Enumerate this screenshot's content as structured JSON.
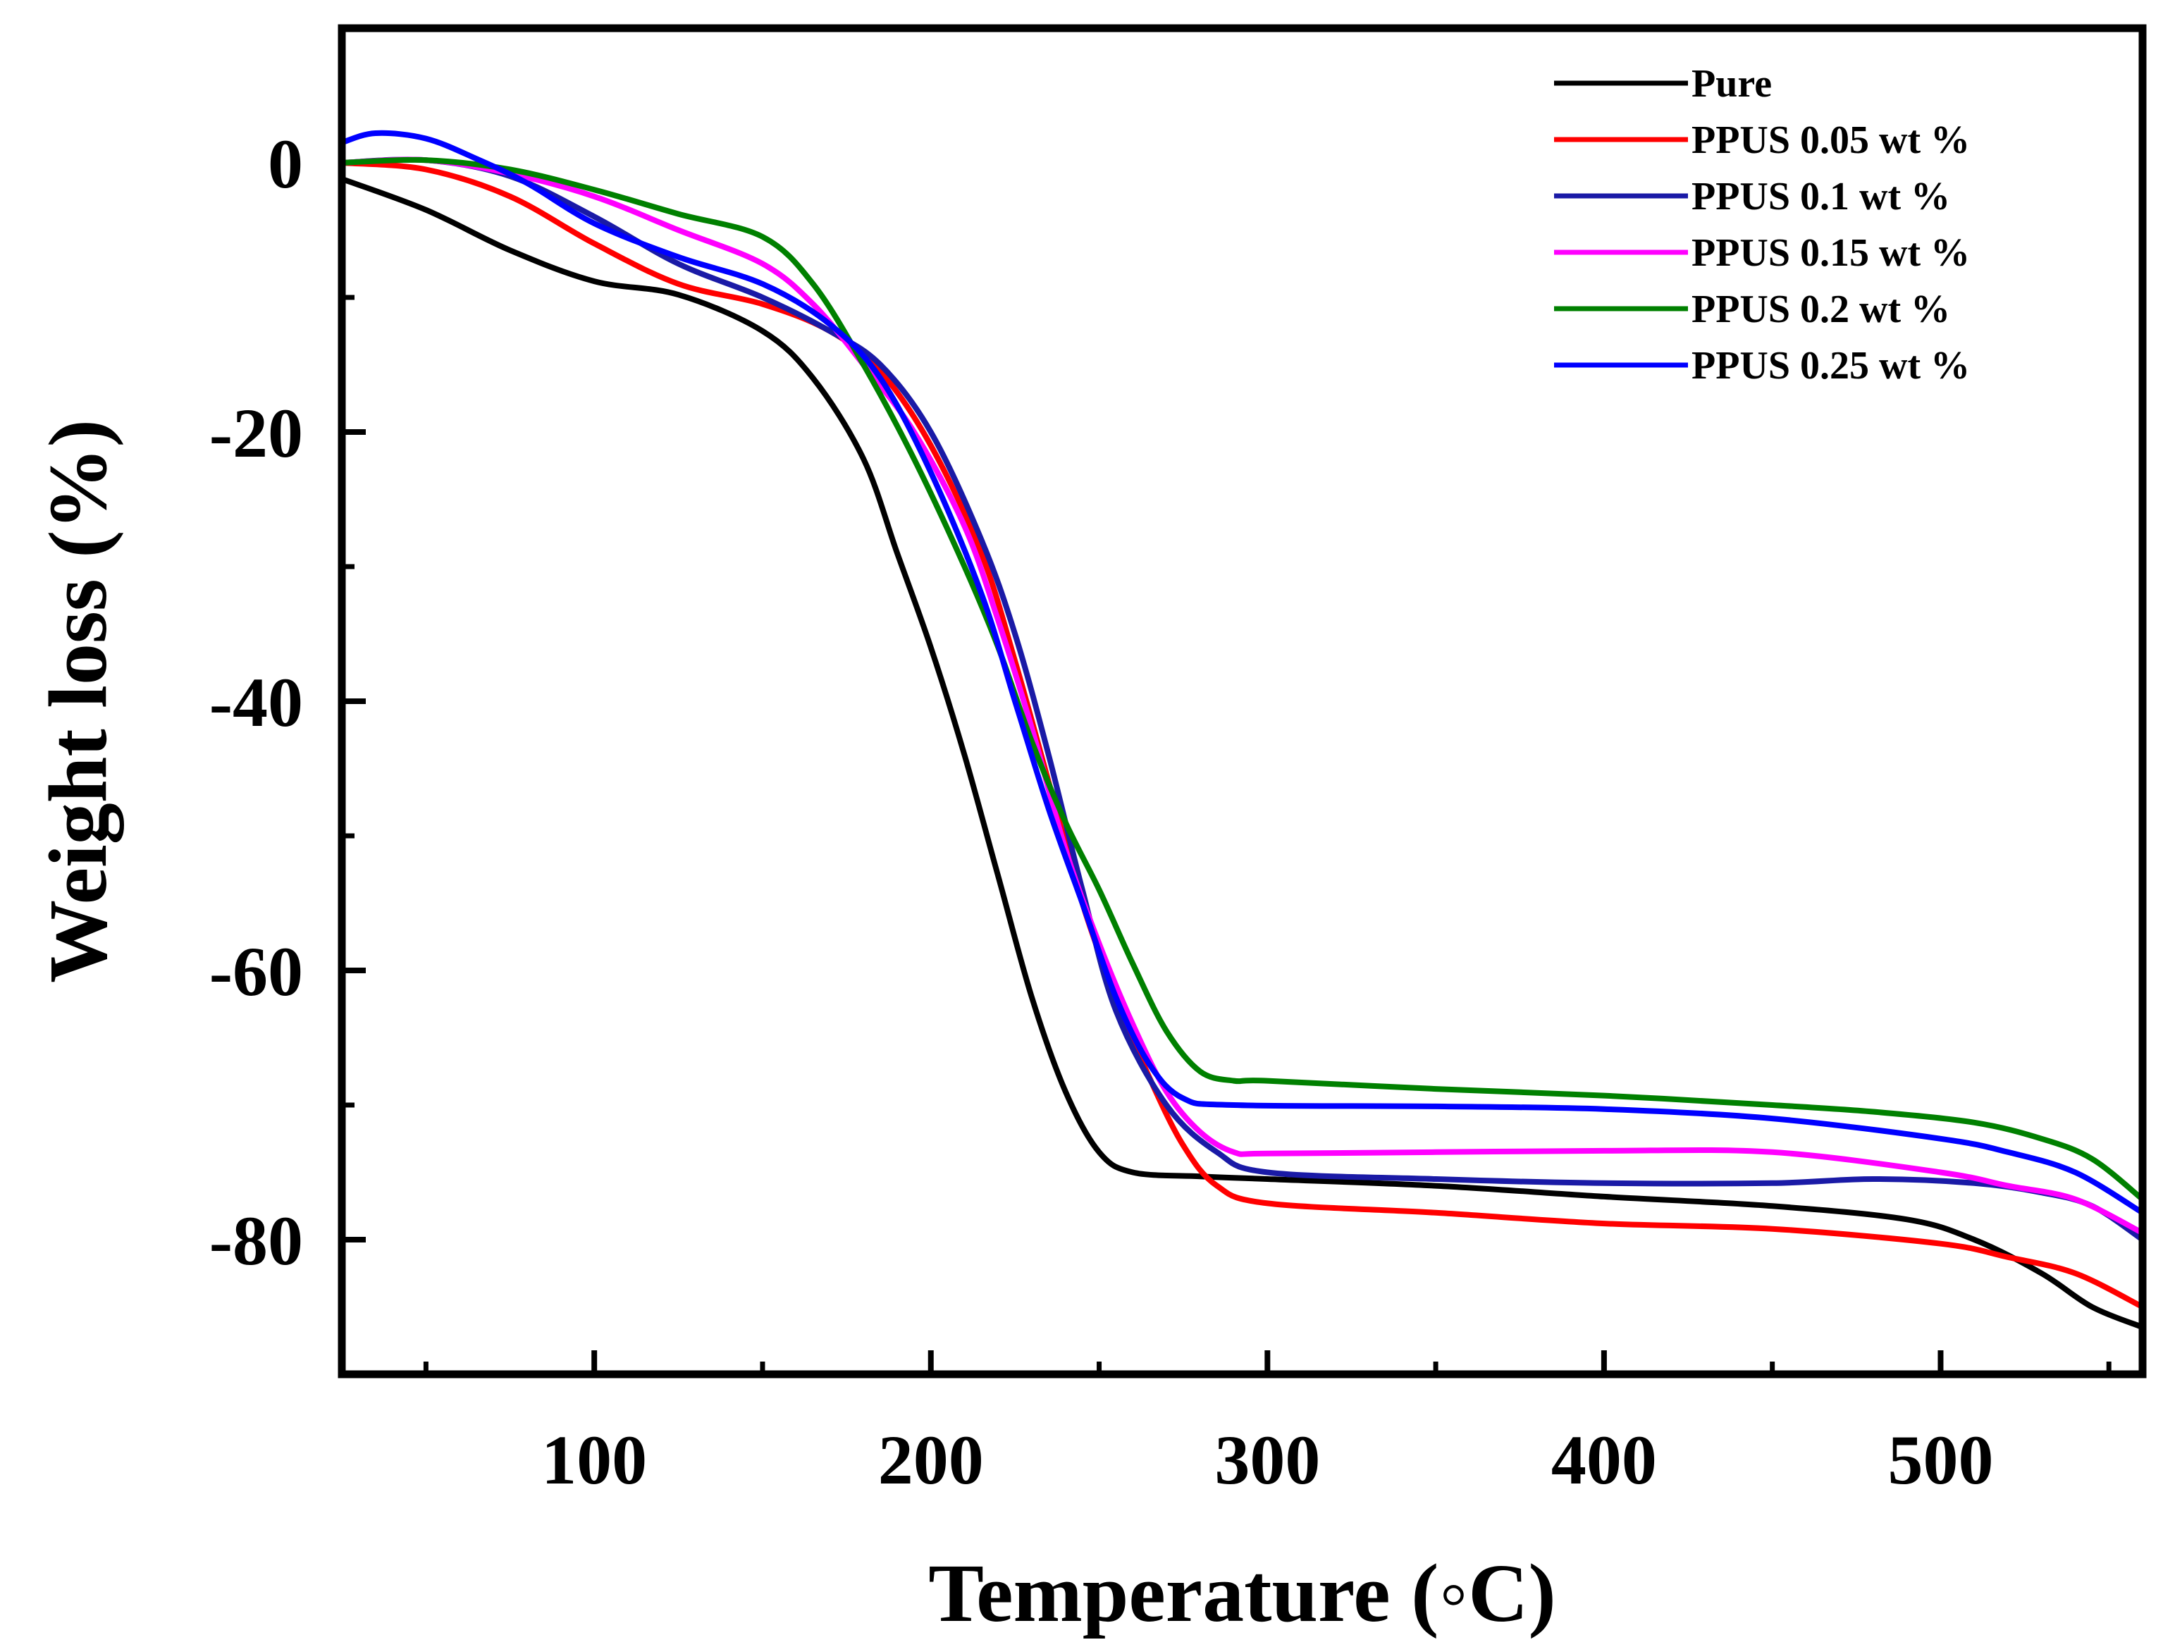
{
  "chart_data": {
    "type": "line",
    "title": "",
    "xlabel": "Temperature (◦C)",
    "ylabel": "Weight loss (%)",
    "xlim": [
      25,
      560
    ],
    "ylim": [
      -90,
      10
    ],
    "xticks": [
      100,
      200,
      300,
      400,
      500
    ],
    "xtick_labels": [
      "100",
      "200",
      "300",
      "400",
      "500"
    ],
    "yticks": [
      0,
      -20,
      -40,
      -60,
      -80
    ],
    "ytick_labels": [
      "0",
      "-20",
      "-40",
      "-60",
      "-80"
    ],
    "grid": false,
    "legend_position": "top-right",
    "series": [
      {
        "name": "Pure",
        "color": "#000000",
        "points": [
          [
            25,
            -1.2
          ],
          [
            50,
            -3.5
          ],
          [
            75,
            -6.5
          ],
          [
            100,
            -8.8
          ],
          [
            125,
            -9.8
          ],
          [
            150,
            -12.5
          ],
          [
            165,
            -16
          ],
          [
            180,
            -22
          ],
          [
            190,
            -29
          ],
          [
            200,
            -36
          ],
          [
            210,
            -44
          ],
          [
            220,
            -53
          ],
          [
            230,
            -62
          ],
          [
            240,
            -69
          ],
          [
            250,
            -73.5
          ],
          [
            260,
            -75
          ],
          [
            280,
            -75.3
          ],
          [
            300,
            -75.5
          ],
          [
            350,
            -76
          ],
          [
            400,
            -76.8
          ],
          [
            450,
            -77.5
          ],
          [
            490,
            -78.5
          ],
          [
            510,
            -80
          ],
          [
            530,
            -82.5
          ],
          [
            545,
            -85
          ],
          [
            560,
            -86.5
          ]
        ]
      },
      {
        "name": "PPUS 0.05 wt %",
        "color": "#ff0000",
        "points": [
          [
            25,
            0
          ],
          [
            50,
            -0.5
          ],
          [
            75,
            -2.5
          ],
          [
            100,
            -6
          ],
          [
            125,
            -9
          ],
          [
            150,
            -10.5
          ],
          [
            170,
            -12.5
          ],
          [
            185,
            -15.5
          ],
          [
            200,
            -21
          ],
          [
            215,
            -29
          ],
          [
            225,
            -37
          ],
          [
            235,
            -46
          ],
          [
            245,
            -55
          ],
          [
            255,
            -62
          ],
          [
            265,
            -68
          ],
          [
            275,
            -73
          ],
          [
            285,
            -76
          ],
          [
            300,
            -77.3
          ],
          [
            350,
            -78
          ],
          [
            400,
            -78.8
          ],
          [
            450,
            -79.2
          ],
          [
            500,
            -80.3
          ],
          [
            520,
            -81.3
          ],
          [
            540,
            -82.5
          ],
          [
            560,
            -85
          ]
        ]
      },
      {
        "name": "PPUS 0.1 wt %",
        "color": "#1a1aa6",
        "points": [
          [
            25,
            0
          ],
          [
            50,
            0.2
          ],
          [
            75,
            -1
          ],
          [
            100,
            -4
          ],
          [
            125,
            -7.5
          ],
          [
            150,
            -10
          ],
          [
            170,
            -12.5
          ],
          [
            185,
            -15
          ],
          [
            200,
            -20
          ],
          [
            215,
            -28
          ],
          [
            225,
            -35
          ],
          [
            235,
            -44
          ],
          [
            245,
            -54
          ],
          [
            255,
            -63
          ],
          [
            270,
            -70
          ],
          [
            285,
            -73.5
          ],
          [
            300,
            -75
          ],
          [
            350,
            -75.5
          ],
          [
            400,
            -75.8
          ],
          [
            450,
            -75.8
          ],
          [
            480,
            -75.5
          ],
          [
            510,
            -75.8
          ],
          [
            530,
            -76.5
          ],
          [
            545,
            -77.5
          ],
          [
            560,
            -80
          ]
        ]
      },
      {
        "name": "PPUS 0.15 wt %",
        "color": "#ff00ff",
        "points": [
          [
            25,
            0
          ],
          [
            50,
            0.2
          ],
          [
            75,
            -0.8
          ],
          [
            100,
            -2.5
          ],
          [
            125,
            -5
          ],
          [
            150,
            -7.5
          ],
          [
            165,
            -10.5
          ],
          [
            180,
            -15
          ],
          [
            195,
            -20
          ],
          [
            210,
            -27
          ],
          [
            220,
            -34
          ],
          [
            230,
            -42
          ],
          [
            240,
            -51
          ],
          [
            250,
            -58
          ],
          [
            260,
            -64
          ],
          [
            270,
            -69
          ],
          [
            280,
            -72
          ],
          [
            290,
            -73.5
          ],
          [
            300,
            -73.6
          ],
          [
            350,
            -73.5
          ],
          [
            400,
            -73.4
          ],
          [
            450,
            -73.5
          ],
          [
            500,
            -75
          ],
          [
            520,
            -76
          ],
          [
            540,
            -77
          ],
          [
            560,
            -79.5
          ]
        ]
      },
      {
        "name": "PPUS 0.2 wt %",
        "color": "#008000",
        "points": [
          [
            25,
            0
          ],
          [
            50,
            0.2
          ],
          [
            75,
            -0.5
          ],
          [
            100,
            -2
          ],
          [
            125,
            -3.8
          ],
          [
            150,
            -5.5
          ],
          [
            165,
            -9
          ],
          [
            180,
            -15
          ],
          [
            195,
            -22
          ],
          [
            210,
            -30
          ],
          [
            220,
            -36
          ],
          [
            230,
            -43
          ],
          [
            240,
            -49
          ],
          [
            250,
            -54
          ],
          [
            260,
            -59.5
          ],
          [
            270,
            -64.5
          ],
          [
            280,
            -67.5
          ],
          [
            290,
            -68.2
          ],
          [
            300,
            -68.2
          ],
          [
            350,
            -68.8
          ],
          [
            400,
            -69.3
          ],
          [
            450,
            -70
          ],
          [
            480,
            -70.5
          ],
          [
            510,
            -71.3
          ],
          [
            530,
            -72.5
          ],
          [
            545,
            -74
          ],
          [
            560,
            -77
          ]
        ]
      },
      {
        "name": "PPUS 0.25 wt %",
        "color": "#0000ff",
        "points": [
          [
            25,
            1.5
          ],
          [
            35,
            2.2
          ],
          [
            50,
            1.8
          ],
          [
            65,
            0.3
          ],
          [
            80,
            -1.5
          ],
          [
            100,
            -4.5
          ],
          [
            125,
            -7
          ],
          [
            150,
            -9
          ],
          [
            170,
            -12
          ],
          [
            185,
            -16
          ],
          [
            200,
            -23
          ],
          [
            215,
            -32
          ],
          [
            225,
            -40
          ],
          [
            235,
            -48
          ],
          [
            245,
            -55
          ],
          [
            255,
            -62
          ],
          [
            265,
            -67
          ],
          [
            275,
            -69.5
          ],
          [
            290,
            -70
          ],
          [
            350,
            -70.1
          ],
          [
            400,
            -70.3
          ],
          [
            450,
            -71
          ],
          [
            500,
            -72.5
          ],
          [
            520,
            -73.5
          ],
          [
            540,
            -75
          ],
          [
            560,
            -78
          ]
        ]
      }
    ]
  }
}
